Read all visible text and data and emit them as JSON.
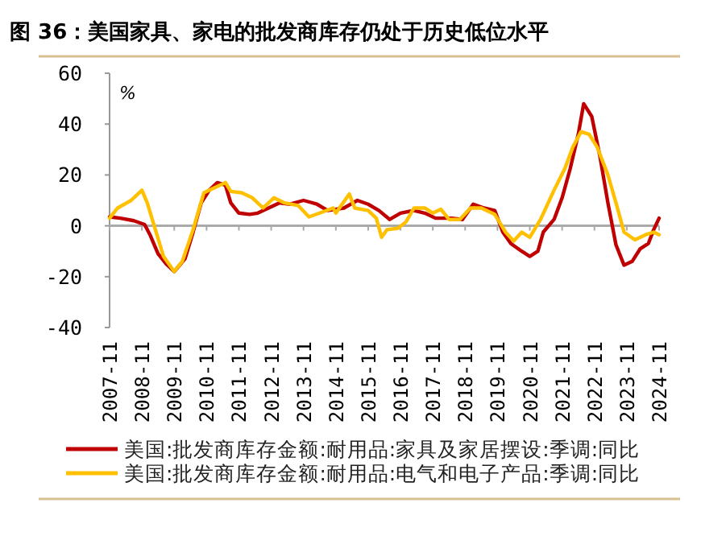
{
  "chart_data": {
    "type": "line",
    "title": "图 36：美国家具、家电的批发商库存仍处于历史低位水平",
    "ylabel": "%",
    "xlim": [
      "2007-11",
      "2024-11"
    ],
    "ylim": [
      -40,
      60
    ],
    "xticks": [
      "2007-11",
      "2008-11",
      "2009-11",
      "2010-11",
      "2011-11",
      "2012-11",
      "2013-11",
      "2014-11",
      "2015-11",
      "2016-11",
      "2017-11",
      "2018-11",
      "2019-11",
      "2020-11",
      "2021-11",
      "2022-11",
      "2023-11",
      "2024-11"
    ],
    "yticks": [
      -40,
      -20,
      0,
      20,
      40,
      60
    ],
    "legend": "bottom",
    "marker": "none",
    "line_style": "solid",
    "series": [
      {
        "name": "美国:批发商库存金额:耐用品:家具及家居摆设:季调:同比",
        "color": "#c00000",
        "x": [
          "2007-11",
          "2008-03",
          "2008-08",
          "2008-12",
          "2009-02",
          "2009-05",
          "2009-08",
          "2009-11",
          "2010-03",
          "2010-06",
          "2010-09",
          "2010-12",
          "2011-03",
          "2011-06",
          "2011-08",
          "2011-11",
          "2012-03",
          "2012-06",
          "2012-10",
          "2013-02",
          "2013-06",
          "2013-11",
          "2014-04",
          "2014-08",
          "2015-02",
          "2015-07",
          "2015-11",
          "2016-03",
          "2016-07",
          "2016-11",
          "2017-04",
          "2017-08",
          "2017-12",
          "2018-06",
          "2018-10",
          "2019-02",
          "2019-06",
          "2019-10",
          "2020-01",
          "2020-04",
          "2020-08",
          "2020-11",
          "2021-02",
          "2021-04",
          "2021-08",
          "2021-11",
          "2022-02",
          "2022-05",
          "2022-07",
          "2022-10",
          "2023-01",
          "2023-04",
          "2023-07",
          "2023-10",
          "2024-01",
          "2024-04",
          "2024-07",
          "2024-09",
          "2024-11"
        ],
        "values": [
          3.5,
          3,
          2,
          0.5,
          -3.5,
          -11,
          -15,
          -18,
          -13,
          -2.5,
          9,
          14,
          17,
          16,
          9,
          5,
          4.5,
          5,
          7,
          9,
          8.5,
          10,
          8.5,
          6,
          7,
          10,
          8.5,
          6,
          2.5,
          5,
          6,
          5,
          3,
          3,
          2.5,
          8.5,
          7,
          6,
          -2.5,
          -7,
          -10,
          -12,
          -10,
          -2.5,
          2.5,
          11,
          22.5,
          36,
          48,
          43,
          27.5,
          9,
          -7.5,
          -15.5,
          -14,
          -9,
          -7,
          -1.5,
          3
        ]
      },
      {
        "name": "美国:批发商库存金额:耐用品:电气和电子产品:季调:同比",
        "color": "#ffc000",
        "x": [
          "2007-11",
          "2008-02",
          "2008-07",
          "2008-11",
          "2009-01",
          "2009-04",
          "2009-07",
          "2009-11",
          "2010-02",
          "2010-06",
          "2010-10",
          "2011-02",
          "2011-06",
          "2011-08",
          "2011-12",
          "2012-04",
          "2012-08",
          "2012-12",
          "2013-04",
          "2013-09",
          "2014-01",
          "2014-05",
          "2014-10",
          "2014-11",
          "2015-04",
          "2015-06",
          "2015-11",
          "2016-02",
          "2016-04",
          "2016-06",
          "2016-10",
          "2017-01",
          "2017-04",
          "2017-08",
          "2017-11",
          "2018-02",
          "2018-05",
          "2018-09",
          "2019-01",
          "2019-05",
          "2019-10",
          "2020-02",
          "2020-05",
          "2020-08",
          "2020-11",
          "2021-03",
          "2021-08",
          "2021-12",
          "2022-03",
          "2022-06",
          "2022-09",
          "2022-12",
          "2023-04",
          "2023-07",
          "2023-10",
          "2024-02",
          "2024-06",
          "2024-09",
          "2024-11"
        ],
        "values": [
          3,
          7,
          10,
          14,
          9,
          -1.5,
          -12,
          -18,
          -14,
          -1.5,
          13,
          15,
          17,
          13.5,
          13,
          11,
          7,
          11,
          9,
          8,
          3.5,
          5,
          7,
          5,
          12.5,
          7,
          6,
          3,
          -4.5,
          -1.5,
          -1,
          1.5,
          7,
          7,
          5,
          6.5,
          2.5,
          2.5,
          7,
          7,
          4.5,
          -2.5,
          -6,
          -2.5,
          -4.5,
          2.5,
          14,
          22.5,
          31,
          37,
          36,
          31,
          20,
          9,
          -2.5,
          -5.5,
          -3.5,
          -2.5,
          -3.5
        ]
      }
    ]
  }
}
